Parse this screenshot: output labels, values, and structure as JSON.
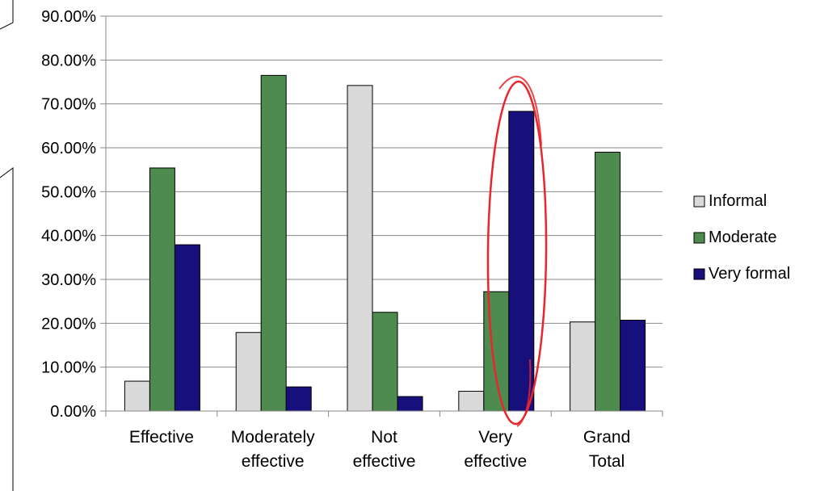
{
  "chart_data": {
    "type": "bar",
    "categories": [
      [
        "Effective"
      ],
      [
        "Moderately",
        "effective"
      ],
      [
        "Not",
        "effective"
      ],
      [
        "Very",
        "effective"
      ],
      [
        "Grand",
        "Total"
      ]
    ],
    "series": [
      {
        "name": "Informal",
        "color": "#d9d9d9",
        "values": [
          0.068,
          0.179,
          0.742,
          0.045,
          0.203
        ]
      },
      {
        "name": "Moderate",
        "color": "#4e8b4e",
        "values": [
          0.554,
          0.765,
          0.225,
          0.272,
          0.59
        ]
      },
      {
        "name": "Very formal",
        "color": "#17107c",
        "values": [
          0.379,
          0.055,
          0.033,
          0.683,
          0.207
        ]
      }
    ],
    "y_ticks": [
      "0.00%",
      "10.00%",
      "20.00%",
      "30.00%",
      "40.00%",
      "50.00%",
      "60.00%",
      "70.00%",
      "80.00%",
      "90.00%"
    ],
    "ylim": [
      0,
      0.9
    ],
    "grid": true,
    "legend_position": "right",
    "highlight_category": "Very effective",
    "highlight_color": "#e8262c"
  }
}
